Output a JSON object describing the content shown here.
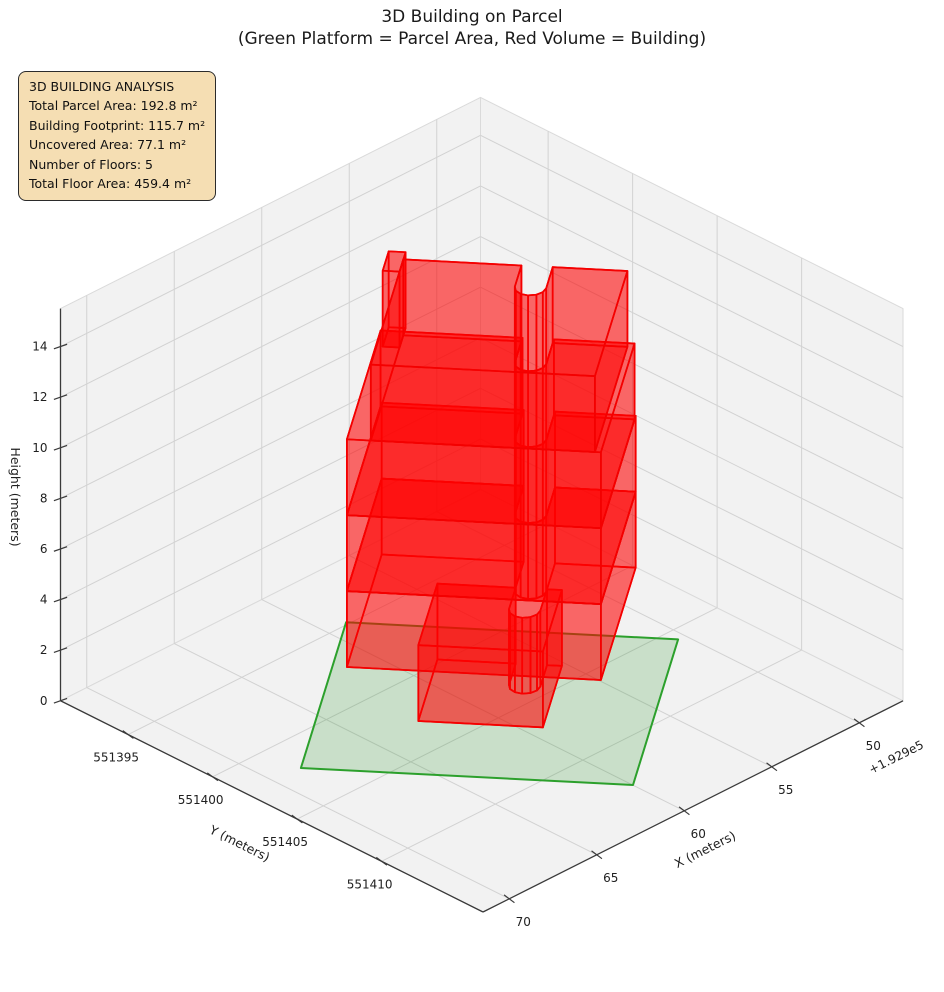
{
  "title": {
    "line1": "3D Building on Parcel",
    "line2": "(Green Platform = Parcel Area, Red Volume = Building)"
  },
  "info_box": {
    "bg_color": "#f5deb3",
    "border_color": "#2b2b2b",
    "lines": [
      "3D BUILDING ANALYSIS",
      "Total Parcel Area: 192.8 m²",
      "Building Footprint: 115.7 m²",
      "Uncovered Area: 77.1 m²",
      "Number of Floors: 5",
      "Total Floor Area: 459.4 m²"
    ]
  },
  "chart_data": {
    "type": "3d-building-plot",
    "axes": {
      "x": {
        "label": "X (meters)",
        "offset_text": "+1.929e5",
        "range": [
          192947.5,
          192971.5
        ],
        "tick_values": [
          192950,
          192955,
          192960,
          192965,
          192970
        ],
        "tick_labels": [
          "50",
          "55",
          "60",
          "65",
          "70"
        ]
      },
      "y": {
        "label": "Y (meters)",
        "range": [
          551391,
          551416
        ],
        "tick_values": [
          551395,
          551400,
          551405,
          551410
        ],
        "tick_labels": [
          "551395",
          "551400",
          "551405",
          "551410"
        ]
      },
      "z": {
        "label": "Height (meters)",
        "range": [
          0,
          15.5
        ],
        "tick_values": [
          0,
          2,
          4,
          6,
          8,
          10,
          12,
          14
        ],
        "tick_labels": [
          "0",
          "2",
          "4",
          "6",
          "8",
          "10",
          "12",
          "14"
        ]
      }
    },
    "parcel": {
      "area_m2": 192.8,
      "uncovered_area_m2": 77.1,
      "fill": "#008000",
      "fill_alpha": 0.17,
      "edge": "#2ca02c",
      "edge_width": 2,
      "corners_xy": [
        [
          192968.5,
          551402.1
        ],
        [
          192960.0,
          551413.0
        ],
        [
          192950.5,
          551405.7
        ],
        [
          192958.9,
          551394.9
        ]
      ],
      "poly_local": [
        [
          0,
          0
        ],
        [
          13.78,
          0
        ],
        [
          13.78,
          12.01
        ],
        [
          0,
          12.01
        ]
      ]
    },
    "building": {
      "footprint_m2": 115.7,
      "num_floors": 5,
      "total_floor_area_m2": 459.4,
      "floor_height_m": 3,
      "face_color": "#ff0000",
      "face_alpha": 0.35,
      "edge_color": "#f40000",
      "edge_width": 1.7,
      "local_frame": {
        "origin_xy": [
          192968.48,
          551402.1
        ],
        "u_axis": [
          -0.616,
          0.788
        ],
        "v_axis": [
          -0.798,
          -0.604
        ]
      },
      "solids": [
        {
          "name": "ground-floor-1",
          "z0": 0,
          "z1": 3,
          "poly": [
            [
              4.2,
              4.3
            ],
            [
              9.37,
              4.3
            ],
            [
              9.37,
              9.37
            ],
            [
              8.75,
              9.37
            ],
            [
              8.75,
              7.6
            ],
            [
              8.66,
              7.28
            ],
            [
              8.43,
              7.04
            ],
            [
              8.1,
              6.95
            ],
            [
              7.78,
              7.04
            ],
            [
              7.54,
              7.28
            ],
            [
              7.45,
              7.6
            ],
            [
              7.45,
              9.37
            ],
            [
              4.2,
              9.37
            ]
          ]
        },
        {
          "name": "floor-2",
          "z0": 3,
          "z1": 6,
          "poly": [
            [
              1.56,
              2.23
            ],
            [
              12.1,
              2.23
            ],
            [
              12.1,
              11.5
            ],
            [
              8.75,
              11.5
            ],
            [
              8.75,
              9.15
            ],
            [
              8.66,
              8.83
            ],
            [
              8.43,
              8.59
            ],
            [
              8.1,
              8.5
            ],
            [
              7.78,
              8.59
            ],
            [
              7.54,
              8.83
            ],
            [
              7.45,
              9.15
            ],
            [
              7.45,
              11.5
            ],
            [
              1.56,
              11.5
            ]
          ]
        },
        {
          "name": "floor-3",
          "z0": 6,
          "z1": 9,
          "poly": [
            [
              1.56,
              2.23
            ],
            [
              12.1,
              2.23
            ],
            [
              12.1,
              11.5
            ],
            [
              8.75,
              11.5
            ],
            [
              8.75,
              9.15
            ],
            [
              8.66,
              8.83
            ],
            [
              8.43,
              8.59
            ],
            [
              8.1,
              8.5
            ],
            [
              7.78,
              8.59
            ],
            [
              7.54,
              8.83
            ],
            [
              7.45,
              9.15
            ],
            [
              7.45,
              11.5
            ],
            [
              1.56,
              11.5
            ]
          ]
        },
        {
          "name": "floor-4",
          "z0": 9,
          "z1": 12,
          "poly": [
            [
              1.56,
              2.23
            ],
            [
              12.1,
              2.23
            ],
            [
              12.1,
              11.2
            ],
            [
              8.75,
              11.2
            ],
            [
              8.75,
              9.15
            ],
            [
              8.66,
              8.83
            ],
            [
              8.43,
              8.59
            ],
            [
              8.1,
              8.5
            ],
            [
              7.78,
              8.59
            ],
            [
              7.54,
              8.83
            ],
            [
              7.45,
              9.15
            ],
            [
              7.45,
              11.2
            ],
            [
              1.56,
              11.2
            ]
          ]
        },
        {
          "name": "roof-fin",
          "z0": 12,
          "z1": 15,
          "poly": [
            [
              1.85,
              9.9
            ],
            [
              2.55,
              9.9
            ],
            [
              2.55,
              11.5
            ],
            [
              1.85,
              11.5
            ]
          ]
        },
        {
          "name": "floor-5",
          "z0": 12,
          "z1": 15,
          "poly": [
            [
              2.55,
              2.23
            ],
            [
              11.85,
              2.23
            ],
            [
              11.85,
              10.9
            ],
            [
              8.75,
              10.9
            ],
            [
              8.75,
              9.15
            ],
            [
              8.66,
              8.83
            ],
            [
              8.43,
              8.59
            ],
            [
              8.1,
              8.5
            ],
            [
              7.78,
              8.59
            ],
            [
              7.54,
              8.83
            ],
            [
              7.45,
              9.15
            ],
            [
              7.45,
              10.9
            ],
            [
              2.55,
              10.9
            ]
          ]
        }
      ]
    },
    "style": {
      "pane_fill": "#f2f2f2",
      "pane_edge": "#dadada",
      "grid_color": "#d2d2d2",
      "spine_color": "#3a3a3a",
      "tick_text_color": "#1f1f1f"
    }
  }
}
